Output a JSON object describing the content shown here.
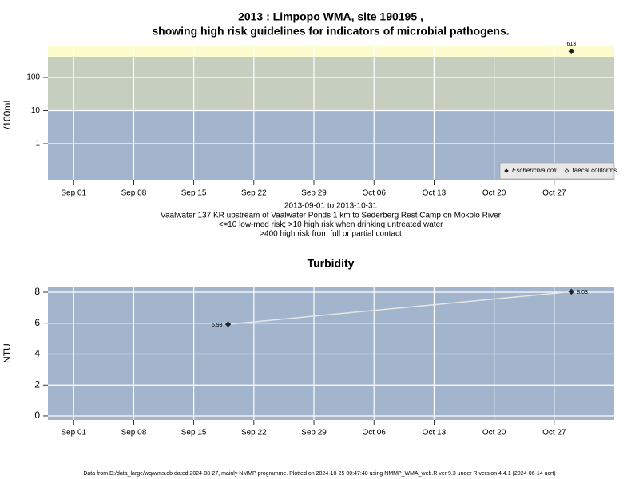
{
  "chart_data": [
    {
      "type": "scatter",
      "title": [
        "2013 : Limpopo WMA, site 190195 ,",
        "showing high risk guidelines for indicators of microbial pathogens."
      ],
      "y_label": "/100mL",
      "log_scale": true,
      "ylim": [
        0.078,
        870
      ],
      "yticks": [
        1,
        10,
        100
      ],
      "xlim": [
        "2013-08-29",
        "2013-11-03"
      ],
      "xticks": [
        {
          "value": "2013-09-01",
          "label": "Sep 01"
        },
        {
          "value": "2013-09-08",
          "label": "Sep 08"
        },
        {
          "value": "2013-09-15",
          "label": "Sep 15"
        },
        {
          "value": "2013-09-22",
          "label": "Sep 22"
        },
        {
          "value": "2013-09-29",
          "label": "Sep 29"
        },
        {
          "value": "2013-10-06",
          "label": "Oct 06"
        },
        {
          "value": "2013-10-13",
          "label": "Oct 13"
        },
        {
          "value": "2013-10-20",
          "label": "Oct 20"
        },
        {
          "value": "2013-10-27",
          "label": "Oct 27"
        }
      ],
      "grid": true,
      "band_limits": [
        10,
        400
      ],
      "band_colors": [
        "#a3b4cd",
        "#c6cec0",
        "#fdfccf"
      ],
      "legend": "bottom right",
      "series": [
        {
          "name": "Escherichia coli",
          "color": "#222222",
          "filled": true,
          "label_style": "italic",
          "x": [
            "2013-10-29"
          ],
          "values": [
            613
          ]
        },
        {
          "name": "faecal coliforms",
          "color": "#222222",
          "filled": false,
          "label_style": "normal",
          "x": [],
          "values": []
        }
      ],
      "notes": [
        "2013-09-01 to 2013-10-31",
        "Vaalwater 137 KR upstream of Vaalwater Ponds 1 km to Sederberg Rest Camp on Mokolo River",
        "<=10 low-med risk; >10 high risk when drinking untreated water",
        ">400 high risk from full or partial contact"
      ]
    },
    {
      "type": "line",
      "title": [
        "Turbidity"
      ],
      "y_label": "NTU",
      "log_scale": false,
      "ylim": [
        -0.26,
        8.36
      ],
      "yticks": [
        0,
        2,
        4,
        6,
        8
      ],
      "xlim": [
        "2013-08-29",
        "2013-11-03"
      ],
      "xticks": [
        {
          "value": "2013-09-01",
          "label": "Sep 01"
        },
        {
          "value": "2013-09-08",
          "label": "Sep 08"
        },
        {
          "value": "2013-09-15",
          "label": "Sep 15"
        },
        {
          "value": "2013-09-22",
          "label": "Sep 22"
        },
        {
          "value": "2013-09-29",
          "label": "Sep 29"
        },
        {
          "value": "2013-10-06",
          "label": "Oct 06"
        },
        {
          "value": "2013-10-13",
          "label": "Oct 13"
        },
        {
          "value": "2013-10-20",
          "label": "Oct 20"
        },
        {
          "value": "2013-10-27",
          "label": "Oct 27"
        }
      ],
      "grid": true,
      "background": "#a3b4cd",
      "series": [
        {
          "color": "#e6e6e6",
          "marker_color": "#222222",
          "x": [
            "2013-09-19",
            "2013-10-29"
          ],
          "values": [
            5.93,
            8.03
          ]
        }
      ]
    }
  ],
  "footer": "Data from D:/data_large/wq/wms.db dated 2024-08-27, mainly NMMP programme. Plotted on 2024-10-25 00:47:48 using NMMP_WMA_web.R ver 9.3 under R version 4.4.1 (2024-06-14 ucrt)"
}
